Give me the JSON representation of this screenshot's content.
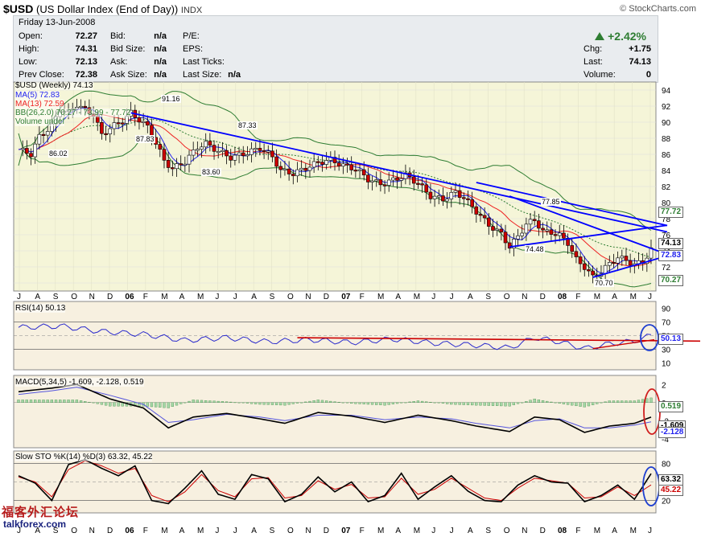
{
  "header": {
    "symbol": "$USD",
    "name": "(US Dollar Index (End of Day))",
    "exchange": "INDX",
    "brand": "© StockCharts.com"
  },
  "quote": {
    "date": "Friday   13-Jun-2008",
    "open_label": "Open:",
    "open": "72.27",
    "high_label": "High:",
    "high": "74.31",
    "low_label": "Low:",
    "low": "72.13",
    "prev_label": "Prev Close:",
    "prev": "72.38",
    "bid_label": "Bid:",
    "bid": "n/a",
    "bidsize_label": "Bid Size:",
    "bidsize": "n/a",
    "ask_label": "Ask:",
    "ask": "n/a",
    "asksize_label": "Ask Size:",
    "asksize": "n/a",
    "pe_label": "P/E:",
    "eps_label": "EPS:",
    "lastticks_label": "Last Ticks:",
    "lastsize_label": "Last Size:",
    "lastsize": "n/a",
    "pct": "+2.42%",
    "chg_label": "Chg:",
    "chg": "+1.75",
    "last_label": "Last:",
    "last": "74.13",
    "volume_label": "Volume:",
    "volume": "0"
  },
  "colors": {
    "price_bg": "#f5f5d8",
    "ind_bg": "#f7f0e0",
    "up": "#ffffff",
    "down": "#cc0000",
    "trend": "#0000ff",
    "ma5": "#2222ee",
    "ma13": "#ee2222",
    "bb": "#2e7d32"
  },
  "chart_data": [
    {
      "type": "candlestick",
      "title": "$USD (Weekly) 74.13",
      "legend": [
        "MA(5) 72.83",
        "MA(13) 72.59",
        "BB(26,2.0) 70.27 - 73.99 - 77.72",
        "Volume undef"
      ],
      "x_ticks": [
        "J",
        "A",
        "S",
        "O",
        "N",
        "D",
        "06",
        "F",
        "M",
        "A",
        "M",
        "J",
        "J",
        "A",
        "S",
        "O",
        "N",
        "D",
        "07",
        "F",
        "M",
        "A",
        "M",
        "J",
        "J",
        "A",
        "S",
        "O",
        "N",
        "D",
        "08",
        "F",
        "M",
        "A",
        "M",
        "J"
      ],
      "y_ticks": [
        94,
        92,
        90,
        88,
        86,
        84,
        82,
        80,
        78,
        76,
        74,
        72,
        70
      ],
      "ylim": [
        69,
        95
      ],
      "close_points": [
        [
          0,
          86.6
        ],
        [
          3,
          86.02
        ],
        [
          5,
          88.2
        ],
        [
          8,
          89.5
        ],
        [
          10,
          91.6
        ],
        [
          12,
          91.2
        ],
        [
          14,
          92.2
        ],
        [
          16,
          91.5
        ],
        [
          18,
          91.0
        ],
        [
          20,
          88.4
        ],
        [
          22,
          89.3
        ],
        [
          25,
          90.2
        ],
        [
          27,
          91.16
        ],
        [
          29,
          90.3
        ],
        [
          31,
          89.4
        ],
        [
          33,
          87.4
        ],
        [
          35,
          85.2
        ],
        [
          37,
          84.2
        ],
        [
          40,
          85.1
        ],
        [
          43,
          86.9
        ],
        [
          45,
          87.33
        ],
        [
          48,
          86.4
        ],
        [
          51,
          85.6
        ],
        [
          55,
          86.2
        ],
        [
          58,
          86.8
        ],
        [
          61,
          85.7
        ],
        [
          63,
          84.0
        ],
        [
          66,
          83.6
        ],
        [
          69,
          84.3
        ],
        [
          72,
          85.0
        ],
        [
          75,
          85.3
        ],
        [
          78,
          84.6
        ],
        [
          81,
          84.2
        ],
        [
          84,
          82.9
        ],
        [
          87,
          82.3
        ],
        [
          90,
          82.8
        ],
        [
          93,
          83.4
        ],
        [
          96,
          82.4
        ],
        [
          99,
          80.8
        ],
        [
          102,
          80.4
        ],
        [
          105,
          81.3
        ],
        [
          107,
          80.6
        ],
        [
          110,
          78.9
        ],
        [
          113,
          77.2
        ],
        [
          116,
          76.1
        ],
        [
          118,
          74.48
        ],
        [
          120,
          75.8
        ],
        [
          122,
          77.3
        ],
        [
          124,
          77.85
        ],
        [
          126,
          76.4
        ],
        [
          128,
          76.3
        ],
        [
          130,
          75.9
        ],
        [
          132,
          75.0
        ],
        [
          134,
          72.9
        ],
        [
          136,
          72.0
        ],
        [
          138,
          70.7
        ],
        [
          140,
          71.4
        ],
        [
          142,
          72.4
        ],
        [
          144,
          73.2
        ],
        [
          146,
          72.8
        ],
        [
          148,
          72.3
        ],
        [
          150,
          72.6
        ],
        [
          152,
          74.13
        ]
      ],
      "annotations": [
        "86.02",
        "91.16",
        "87.83",
        "87.33",
        "83.60",
        "77.85",
        "74.48",
        "70.70"
      ],
      "price_tags": [
        "77.72",
        "74.13",
        "72.83",
        "70.27"
      ]
    },
    {
      "type": "line",
      "title": "RSI(14) 50.13",
      "y_ticks": [
        90,
        70,
        50,
        30,
        10
      ],
      "ylim": [
        0,
        100
      ],
      "values": [
        [
          0,
          62
        ],
        [
          10,
          64
        ],
        [
          20,
          56
        ],
        [
          30,
          52
        ],
        [
          40,
          43
        ],
        [
          50,
          47
        ],
        [
          60,
          41
        ],
        [
          70,
          44
        ],
        [
          80,
          40
        ],
        [
          90,
          45
        ],
        [
          100,
          39
        ],
        [
          110,
          36
        ],
        [
          118,
          32
        ],
        [
          124,
          47
        ],
        [
          130,
          41
        ],
        [
          136,
          31
        ],
        [
          142,
          38
        ],
        [
          148,
          42
        ],
        [
          152,
          50.13
        ]
      ],
      "tag": "50.13"
    },
    {
      "type": "line",
      "title": "MACD(5,34,5) -1.609, -2.128, 0.519",
      "y_ticks": [
        2,
        0,
        -2,
        -4
      ],
      "ylim": [
        -5,
        3
      ],
      "macd": [
        [
          0,
          1.2
        ],
        [
          8,
          1.6
        ],
        [
          14,
          2.0
        ],
        [
          22,
          0.4
        ],
        [
          30,
          -0.6
        ],
        [
          36,
          -2.8
        ],
        [
          42,
          -1.6
        ],
        [
          50,
          -1.2
        ],
        [
          58,
          -1.8
        ],
        [
          64,
          -2.3
        ],
        [
          72,
          -1.1
        ],
        [
          80,
          -1.5
        ],
        [
          88,
          -2.2
        ],
        [
          96,
          -1.4
        ],
        [
          104,
          -2.0
        ],
        [
          110,
          -2.6
        ],
        [
          118,
          -3.2
        ],
        [
          124,
          -1.6
        ],
        [
          130,
          -1.9
        ],
        [
          136,
          -3.3
        ],
        [
          142,
          -2.6
        ],
        [
          148,
          -2.3
        ],
        [
          152,
          -1.609
        ]
      ],
      "signal": [
        [
          0,
          0.9
        ],
        [
          8,
          1.3
        ],
        [
          14,
          1.7
        ],
        [
          22,
          0.8
        ],
        [
          30,
          -0.2
        ],
        [
          36,
          -2.2
        ],
        [
          42,
          -1.9
        ],
        [
          50,
          -1.3
        ],
        [
          58,
          -1.6
        ],
        [
          64,
          -2.0
        ],
        [
          72,
          -1.4
        ],
        [
          80,
          -1.4
        ],
        [
          88,
          -1.9
        ],
        [
          96,
          -1.6
        ],
        [
          104,
          -1.8
        ],
        [
          110,
          -2.3
        ],
        [
          118,
          -2.8
        ],
        [
          124,
          -2.0
        ],
        [
          130,
          -1.8
        ],
        [
          136,
          -2.8
        ],
        [
          142,
          -2.8
        ],
        [
          148,
          -2.5
        ],
        [
          152,
          -2.128
        ]
      ],
      "tags": [
        "0.519",
        "-1.609",
        "-2.128"
      ]
    },
    {
      "type": "line",
      "title": "Slow STO %K(14) %D(3) 63.32, 45.22",
      "y_ticks": [
        80,
        50,
        20
      ],
      "ylim": [
        0,
        100
      ],
      "k": [
        [
          0,
          60
        ],
        [
          4,
          48
        ],
        [
          8,
          20
        ],
        [
          12,
          78
        ],
        [
          16,
          86
        ],
        [
          20,
          72
        ],
        [
          24,
          60
        ],
        [
          28,
          76
        ],
        [
          32,
          20
        ],
        [
          36,
          15
        ],
        [
          40,
          40
        ],
        [
          44,
          68
        ],
        [
          48,
          30
        ],
        [
          52,
          22
        ],
        [
          56,
          62
        ],
        [
          60,
          55
        ],
        [
          64,
          18
        ],
        [
          68,
          30
        ],
        [
          72,
          58
        ],
        [
          76,
          34
        ],
        [
          80,
          50
        ],
        [
          84,
          18
        ],
        [
          88,
          28
        ],
        [
          92,
          64
        ],
        [
          96,
          22
        ],
        [
          100,
          42
        ],
        [
          104,
          60
        ],
        [
          108,
          35
        ],
        [
          112,
          20
        ],
        [
          116,
          18
        ],
        [
          120,
          45
        ],
        [
          124,
          60
        ],
        [
          128,
          50
        ],
        [
          132,
          48
        ],
        [
          136,
          18
        ],
        [
          140,
          28
        ],
        [
          144,
          45
        ],
        [
          148,
          22
        ],
        [
          152,
          63.32
        ]
      ],
      "d": [
        [
          0,
          58
        ],
        [
          4,
          50
        ],
        [
          8,
          26
        ],
        [
          12,
          70
        ],
        [
          16,
          84
        ],
        [
          20,
          76
        ],
        [
          24,
          64
        ],
        [
          28,
          72
        ],
        [
          32,
          28
        ],
        [
          36,
          18
        ],
        [
          40,
          34
        ],
        [
          44,
          62
        ],
        [
          48,
          36
        ],
        [
          52,
          26
        ],
        [
          56,
          55
        ],
        [
          60,
          57
        ],
        [
          64,
          24
        ],
        [
          68,
          28
        ],
        [
          72,
          52
        ],
        [
          76,
          38
        ],
        [
          80,
          46
        ],
        [
          84,
          24
        ],
        [
          88,
          26
        ],
        [
          92,
          56
        ],
        [
          96,
          30
        ],
        [
          100,
          38
        ],
        [
          104,
          56
        ],
        [
          108,
          40
        ],
        [
          112,
          24
        ],
        [
          116,
          20
        ],
        [
          120,
          40
        ],
        [
          124,
          56
        ],
        [
          128,
          52
        ],
        [
          132,
          48
        ],
        [
          136,
          24
        ],
        [
          140,
          26
        ],
        [
          144,
          42
        ],
        [
          148,
          28
        ],
        [
          152,
          45.22
        ]
      ],
      "tags": [
        "63.32",
        "45.22"
      ]
    }
  ],
  "watermark": {
    "cn": "福客外汇论坛",
    "url": "talkforex.com"
  }
}
